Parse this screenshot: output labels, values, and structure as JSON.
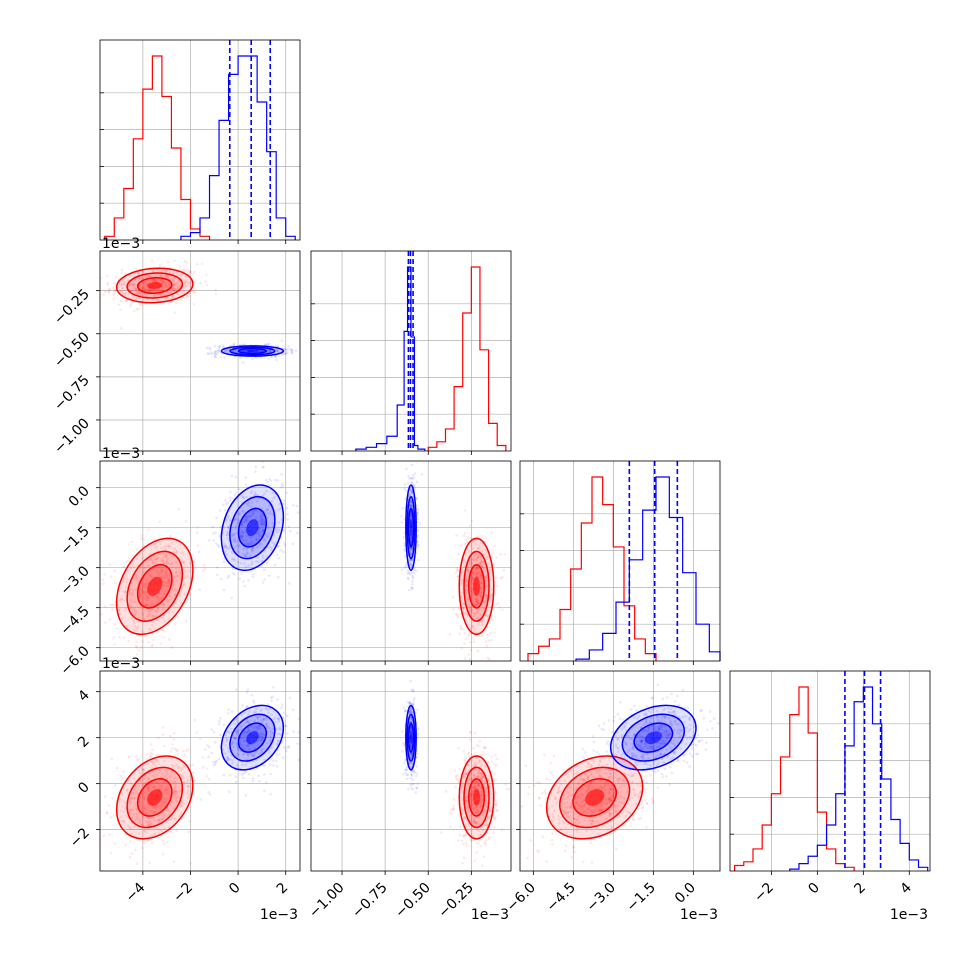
{
  "figure": {
    "description_type": "corner plot",
    "colors": {
      "series_a": "#ff0000",
      "series_b": "#0000ff",
      "grid": "#b0b0b0",
      "axes": "#000000"
    }
  },
  "chart_data": {
    "type": "corner",
    "params": [
      {
        "id": "p1",
        "range": [
          -5.8,
          2.6
        ],
        "ticks": [
          -4,
          -2,
          0,
          2
        ],
        "tick_labels": [
          "−4",
          "−2",
          "0",
          "2"
        ],
        "offset_label": "1e−3"
      },
      {
        "id": "p2",
        "range": [
          -1.18,
          -0.02
        ],
        "ticks": [
          -1.0,
          -0.75,
          -0.5,
          -0.25
        ],
        "tick_labels": [
          "−1.00",
          "−0.75",
          "−0.50",
          "−0.25"
        ],
        "offset_label": "1e−3"
      },
      {
        "id": "p3",
        "range": [
          -6.5,
          1.0
        ],
        "ticks": [
          -6.0,
          -4.5,
          -3.0,
          -1.5,
          0.0
        ],
        "tick_labels": [
          "−6.0",
          "−4.5",
          "−3.0",
          "−1.5",
          "0.0"
        ],
        "offset_label": "1e−3"
      },
      {
        "id": "p4",
        "range": [
          -3.8,
          4.9
        ],
        "ticks": [
          -2,
          0,
          2,
          4
        ],
        "tick_labels": [
          "−2",
          "0",
          "2",
          "4"
        ],
        "offset_label": "1e−3"
      }
    ],
    "series": [
      {
        "color": "#ff0000",
        "mean": [
          -3.5,
          -0.22,
          -3.7,
          -0.6
        ],
        "std": [
          0.8,
          0.05,
          0.9,
          0.9
        ],
        "hist": [
          {
            "edges": [
              -5.6,
              -5.2,
              -4.8,
              -4.4,
              -4.0,
              -3.6,
              -3.2,
              -2.8,
              -2.4,
              -2.0,
              -1.6,
              -1.2
            ],
            "counts": [
              0.02,
              0.12,
              0.28,
              0.55,
              0.82,
              1.0,
              0.78,
              0.5,
              0.22,
              0.06,
              0.02
            ]
          },
          {
            "edges": [
              -0.5,
              -0.45,
              -0.4,
              -0.35,
              -0.3,
              -0.25,
              -0.2,
              -0.15,
              -0.1,
              -0.05
            ],
            "counts": [
              0.02,
              0.05,
              0.12,
              0.35,
              0.75,
              1.0,
              0.55,
              0.15,
              0.03
            ]
          },
          {
            "edges": [
              -6.2,
              -5.8,
              -5.4,
              -5.0,
              -4.6,
              -4.2,
              -3.8,
              -3.4,
              -3.0,
              -2.6,
              -2.2,
              -1.8,
              -1.4
            ],
            "counts": [
              0.04,
              0.08,
              0.12,
              0.28,
              0.5,
              0.75,
              1.0,
              0.85,
              0.62,
              0.3,
              0.12,
              0.04
            ]
          },
          {
            "edges": [
              -3.6,
              -3.2,
              -2.8,
              -2.4,
              -2.0,
              -1.6,
              -1.2,
              -0.8,
              -0.4,
              0.0,
              0.4,
              0.8,
              1.2,
              1.6
            ],
            "counts": [
              0.03,
              0.05,
              0.12,
              0.25,
              0.42,
              0.62,
              0.85,
              1.0,
              0.75,
              0.32,
              0.12,
              0.04,
              0.02
            ]
          }
        ]
      },
      {
        "color": "#0000ff",
        "mean": [
          0.6,
          -0.6,
          -1.5,
          2.0
        ],
        "std": [
          0.65,
          0.015,
          0.8,
          0.7
        ],
        "quantiles": [
          [
            -0.35,
            0.55,
            1.35
          ],
          [
            -0.615,
            -0.603,
            -0.588
          ],
          [
            -2.4,
            -1.45,
            -0.6
          ],
          [
            1.2,
            2.05,
            2.75
          ]
        ],
        "hist": [
          {
            "edges": [
              -2.4,
              -2.0,
              -1.6,
              -1.2,
              -0.8,
              -0.4,
              0.0,
              0.4,
              0.8,
              1.2,
              1.6,
              2.0,
              2.4
            ],
            "counts": [
              0.02,
              0.04,
              0.12,
              0.35,
              0.65,
              0.9,
              1.0,
              1.0,
              0.75,
              0.48,
              0.12,
              0.02
            ]
          },
          {
            "edges": [
              -0.92,
              -0.86,
              -0.8,
              -0.74,
              -0.68,
              -0.64,
              -0.62,
              -0.6,
              -0.58,
              -0.56,
              -0.52
            ],
            "counts": [
              0.01,
              0.02,
              0.04,
              0.08,
              0.25,
              0.65,
              1.0,
              0.62,
              0.03,
              0.01
            ]
          },
          {
            "edges": [
              -4.4,
              -3.9,
              -3.4,
              -2.9,
              -2.4,
              -1.9,
              -1.4,
              -0.9,
              -0.4,
              0.1,
              0.6,
              1.0
            ],
            "counts": [
              0.01,
              0.06,
              0.15,
              0.32,
              0.55,
              0.82,
              1.0,
              0.78,
              0.48,
              0.2,
              0.05
            ]
          },
          {
            "edges": [
              -1.2,
              -0.8,
              -0.4,
              0.0,
              0.4,
              0.8,
              1.2,
              1.6,
              2.0,
              2.4,
              2.8,
              3.2,
              3.6,
              4.0,
              4.4,
              4.8
            ],
            "counts": [
              0.01,
              0.04,
              0.08,
              0.14,
              0.25,
              0.42,
              0.68,
              0.92,
              1.0,
              0.8,
              0.5,
              0.28,
              0.15,
              0.06,
              0.02
            ]
          }
        ]
      }
    ],
    "correlations": {
      "1-0": [
        0.1,
        0.0
      ],
      "2-0": [
        0.35,
        0.25
      ],
      "2-1": [
        0.0,
        0.0
      ],
      "3-0": [
        0.3,
        0.3
      ],
      "3-1": [
        0.0,
        0.0
      ],
      "3-2": [
        0.25,
        0.3
      ]
    }
  }
}
